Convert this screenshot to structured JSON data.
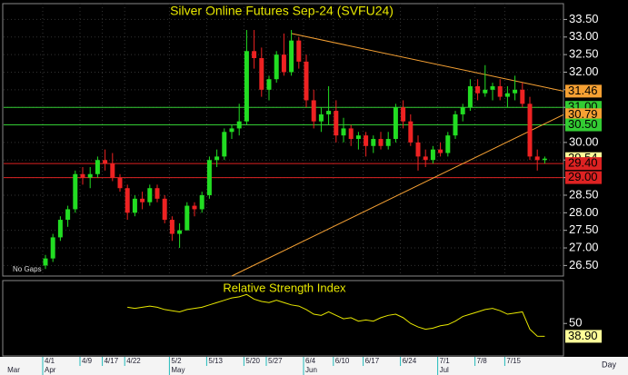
{
  "chart_data": [
    {
      "type": "candlestick",
      "title": "Silver Online Futures Sep-24 (SVFU24)",
      "note": "No Gaps",
      "x_unit": "Day",
      "first_month_label": "Mar",
      "categories": [
        "4/1",
        null,
        null,
        null,
        null,
        "4/9",
        null,
        null,
        "4/17",
        null,
        null,
        "4/22",
        null,
        null,
        null,
        null,
        null,
        "5/2",
        null,
        null,
        null,
        null,
        "5/13",
        null,
        null,
        null,
        null,
        "5/20",
        null,
        null,
        "5/27",
        null,
        null,
        null,
        null,
        "6/4",
        null,
        null,
        null,
        "6/10",
        null,
        null,
        null,
        "6/17",
        null,
        null,
        null,
        null,
        "6/24",
        null,
        null,
        null,
        null,
        "7/1",
        null,
        null,
        null,
        null,
        "7/8",
        null,
        null,
        null,
        "7/15",
        null,
        null,
        null,
        null,
        null
      ],
      "month_categories": [
        "Apr",
        null,
        null,
        null,
        null,
        null,
        null,
        null,
        null,
        null,
        null,
        null,
        null,
        null,
        null,
        null,
        null,
        "May",
        null,
        null,
        null,
        null,
        null,
        null,
        null,
        null,
        null,
        null,
        null,
        null,
        null,
        null,
        null,
        null,
        null,
        "Jun",
        null,
        null,
        null,
        null,
        null,
        null,
        null,
        null,
        null,
        null,
        null,
        null,
        null,
        null,
        null,
        null,
        null,
        "Jul",
        null,
        null,
        null,
        null,
        null,
        null,
        null,
        null,
        null,
        null,
        null,
        null,
        null,
        null
      ],
      "open": [
        26.5,
        26.7,
        27.3,
        27.8,
        28.1,
        29.1,
        29.0,
        29.1,
        29.5,
        29.4,
        29.0,
        28.7,
        28.0,
        28.4,
        28.3,
        28.7,
        28.4,
        27.8,
        27.4,
        27.5,
        28.2,
        28.1,
        28.5,
        29.5,
        29.6,
        30.3,
        30.4,
        30.6,
        32.6,
        32.4,
        31.5,
        31.8,
        32.5,
        32.0,
        32.9,
        32.3,
        31.2,
        30.6,
        30.8,
        30.9,
        30.2,
        30.4,
        30.1,
        30.2,
        29.9,
        30.1,
        29.9,
        30.1,
        31.0,
        30.6,
        30.0,
        29.6,
        29.5,
        29.8,
        29.7,
        30.2,
        30.8,
        31.0,
        31.6,
        31.4,
        31.5,
        31.6,
        31.3,
        31.4,
        31.5,
        31.1,
        29.6,
        29.5
      ],
      "high": [
        26.8,
        27.4,
        27.9,
        28.2,
        29.2,
        29.3,
        29.3,
        29.6,
        29.8,
        29.7,
        29.1,
        28.8,
        28.5,
        28.6,
        28.8,
        28.8,
        28.5,
        27.9,
        27.7,
        28.3,
        28.3,
        28.6,
        29.6,
        29.8,
        30.4,
        30.5,
        31.1,
        33.2,
        33.2,
        32.7,
        31.9,
        32.6,
        33.1,
        33.2,
        33.0,
        32.5,
        31.5,
        31.0,
        31.6,
        31.2,
        30.7,
        30.5,
        30.3,
        30.3,
        30.2,
        30.3,
        30.3,
        31.1,
        31.2,
        30.8,
        30.2,
        29.8,
        29.9,
        30.0,
        30.3,
        30.9,
        31.1,
        31.8,
        31.8,
        32.2,
        31.7,
        31.8,
        31.6,
        31.9,
        31.7,
        31.3,
        29.8,
        29.6
      ],
      "low": [
        26.4,
        26.6,
        27.2,
        27.6,
        28.0,
        28.8,
        28.7,
        29.0,
        29.2,
        28.9,
        28.6,
        27.8,
        27.9,
        28.1,
        28.2,
        28.3,
        27.7,
        27.2,
        27.0,
        27.5,
        27.9,
        28.0,
        28.4,
        29.3,
        29.5,
        30.1,
        30.2,
        30.5,
        32.1,
        31.3,
        31.2,
        31.7,
        31.9,
        31.9,
        32.1,
        31.0,
        30.4,
        30.3,
        30.5,
        30.0,
        30.0,
        29.9,
        29.8,
        29.6,
        29.7,
        29.8,
        29.8,
        30.0,
        30.4,
        29.9,
        29.2,
        29.3,
        29.4,
        29.6,
        29.6,
        30.1,
        30.6,
        30.9,
        31.2,
        31.3,
        31.2,
        31.2,
        31.0,
        31.2,
        31.0,
        29.5,
        29.2,
        29.4
      ],
      "close": [
        26.7,
        27.3,
        27.8,
        28.1,
        29.1,
        29.0,
        29.1,
        29.5,
        29.4,
        29.0,
        28.7,
        28.0,
        28.4,
        28.3,
        28.7,
        28.4,
        27.8,
        27.4,
        27.5,
        28.2,
        28.1,
        28.5,
        29.5,
        29.6,
        30.3,
        30.4,
        30.6,
        32.6,
        32.4,
        31.5,
        31.8,
        32.5,
        32.0,
        32.9,
        32.3,
        31.2,
        30.6,
        30.8,
        30.9,
        30.2,
        30.4,
        30.1,
        30.2,
        29.9,
        30.1,
        29.9,
        30.1,
        31.0,
        30.6,
        30.0,
        29.6,
        29.5,
        29.8,
        29.7,
        30.2,
        30.8,
        31.0,
        31.6,
        31.4,
        31.5,
        31.6,
        31.3,
        31.4,
        31.5,
        31.1,
        29.6,
        29.5,
        29.54
      ],
      "color_up": "#22dd22",
      "color_down": "#ee2222",
      "ylim": [
        26.2,
        33.95
      ],
      "yticks": [
        {
          "value": 26.5,
          "label": "26.50"
        },
        {
          "value": 27,
          "label": "27.00"
        },
        {
          "value": 27.5,
          "label": "27.50"
        },
        {
          "value": 28,
          "label": "28.00"
        },
        {
          "value": 28.5,
          "label": "28.50"
        },
        {
          "value": 29,
          "label": "29.00"
        },
        {
          "value": 29.5,
          "label": "29.50"
        },
        {
          "value": 30,
          "label": "30.00"
        },
        {
          "value": 30.5,
          "label": "30.50"
        },
        {
          "value": 31,
          "label": "31.00"
        },
        {
          "value": 31.5,
          "label": "31.50"
        },
        {
          "value": 32,
          "label": "32.00"
        },
        {
          "value": 32.5,
          "label": "32.50"
        },
        {
          "value": 33,
          "label": "33.00"
        },
        {
          "value": 33.5,
          "label": "33.50"
        }
      ],
      "grid": true,
      "levels": [
        {
          "value": 31.46,
          "label": "31.46",
          "color": "#f5a033",
          "line": false
        },
        {
          "value": 31,
          "label": "31.00",
          "color": "#33cc33",
          "line": true
        },
        {
          "value": 30.79,
          "label": "30.79",
          "color": "#f5a033",
          "line": false
        },
        {
          "value": 30.5,
          "label": "30.50",
          "color": "#33cc33",
          "line": true
        },
        {
          "value": 29.54,
          "label": "29.54",
          "color": "#ffff99",
          "line": false
        },
        {
          "value": 29.4,
          "label": "29.40",
          "color": "#dd2222",
          "line": true
        },
        {
          "value": 29,
          "label": "29.00",
          "color": "#dd2222",
          "line": true
        }
      ],
      "trendlines": [
        {
          "x": [
            33,
            69.5
          ],
          "y": [
            33.1,
            31.46
          ],
          "color": "#f5a033"
        },
        {
          "x": [
            25,
            69.5
          ],
          "y": [
            26.2,
            30.79
          ],
          "color": "#f5a033"
        }
      ]
    },
    {
      "type": "line",
      "title": "Relative Strength Index",
      "color": "#e8e800",
      "values": [
        null,
        null,
        null,
        null,
        null,
        null,
        null,
        null,
        null,
        null,
        null,
        64,
        63,
        64,
        65,
        64,
        62,
        61,
        60,
        62,
        63,
        64,
        66,
        68,
        70,
        72,
        73,
        75,
        71,
        69,
        68,
        70,
        68,
        66,
        65,
        62,
        58,
        57,
        60,
        57,
        54,
        55,
        52,
        53,
        52,
        55,
        57,
        58,
        55,
        50,
        47,
        45,
        46,
        48,
        49,
        52,
        56,
        58,
        60,
        62,
        63,
        61,
        58,
        59,
        60,
        45,
        39,
        38.9
      ],
      "last_value_label": "38.90",
      "label_color": "#ffff99",
      "ylim": [
        22,
        87
      ],
      "yticks": [
        50
      ]
    }
  ]
}
